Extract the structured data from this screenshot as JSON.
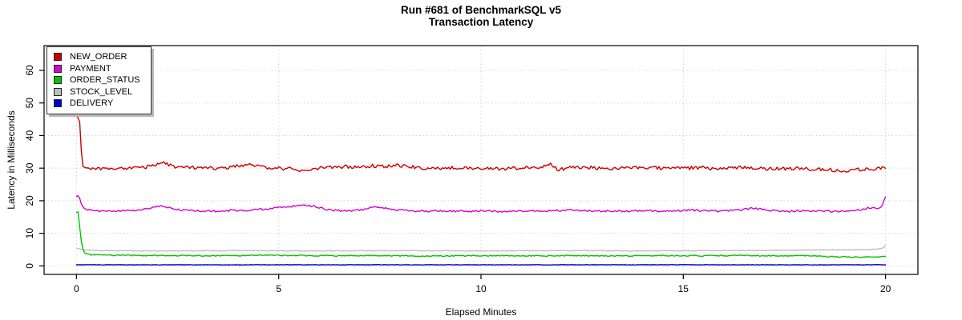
{
  "page": {
    "background": "#ffffff"
  },
  "chart_data": {
    "type": "line",
    "title": "Run #681 of BenchmarkSQL v5",
    "subtitle": "Transaction Latency",
    "xlabel": "Elapsed Minutes",
    "ylabel": "Latency in Milliseconds",
    "xlim": [
      0,
      20
    ],
    "ylim": [
      0,
      65
    ],
    "x_ticks": [
      0,
      5,
      10,
      15,
      20
    ],
    "y_ticks": [
      0,
      10,
      20,
      30,
      40,
      50,
      60
    ],
    "grid": {
      "show": true,
      "line_style": "dotted",
      "color": "#d4d4d4"
    },
    "legend": {
      "position": "top-left"
    },
    "series": [
      {
        "name": "STOCK_LEVEL",
        "color": "#bdbdbd",
        "noise_amplitude": 0.09,
        "anchors": [
          [
            0,
            5.4
          ],
          [
            0.2,
            4.9
          ],
          [
            0.6,
            4.7
          ],
          [
            2,
            4.6
          ],
          [
            4,
            4.7
          ],
          [
            6,
            4.6
          ],
          [
            8,
            4.7
          ],
          [
            10,
            4.6
          ],
          [
            12,
            4.7
          ],
          [
            14,
            4.6
          ],
          [
            16,
            4.7
          ],
          [
            17.5,
            4.8
          ],
          [
            18.5,
            4.9
          ],
          [
            19.3,
            5.0
          ],
          [
            19.8,
            5.1
          ],
          [
            19.95,
            5.6
          ],
          [
            20,
            6.3
          ]
        ]
      },
      {
        "name": "DELIVERY",
        "color": "#0000cc",
        "noise_amplitude": 0.06,
        "anchors": [
          [
            0,
            0.35
          ],
          [
            5,
            0.35
          ],
          [
            10,
            0.35
          ],
          [
            15,
            0.35
          ],
          [
            20,
            0.35
          ]
        ]
      },
      {
        "name": "ORDER_STATUS",
        "color": "#00c400",
        "noise_amplitude": 0.16,
        "anchors": [
          [
            0,
            16.4
          ],
          [
            0.05,
            16.6
          ],
          [
            0.1,
            9.0
          ],
          [
            0.18,
            4.0
          ],
          [
            0.35,
            3.4
          ],
          [
            0.8,
            3.3
          ],
          [
            1.5,
            3.2
          ],
          [
            2.5,
            3.2
          ],
          [
            3.5,
            3.1
          ],
          [
            4.5,
            3.3
          ],
          [
            5.5,
            3.2
          ],
          [
            6.5,
            3.1
          ],
          [
            7.5,
            3.2
          ],
          [
            8.5,
            3.0
          ],
          [
            9.5,
            3.1
          ],
          [
            10.5,
            3.2
          ],
          [
            11.5,
            3.1
          ],
          [
            12.5,
            3.2
          ],
          [
            13.5,
            3.1
          ],
          [
            14.5,
            3.2
          ],
          [
            15.5,
            3.1
          ],
          [
            16.5,
            3.2
          ],
          [
            17.5,
            3.1
          ],
          [
            18.0,
            3.2
          ],
          [
            18.4,
            2.9
          ],
          [
            18.8,
            2.8
          ],
          [
            19.3,
            2.7
          ],
          [
            19.7,
            2.8
          ],
          [
            20,
            2.9
          ]
        ]
      },
      {
        "name": "PAYMENT",
        "color": "#d400d4",
        "noise_amplitude": 0.28,
        "anchors": [
          [
            0,
            21.4
          ],
          [
            0.06,
            21.6
          ],
          [
            0.12,
            19.0
          ],
          [
            0.2,
            17.3
          ],
          [
            0.5,
            16.9
          ],
          [
            0.9,
            16.8
          ],
          [
            1.3,
            17.0
          ],
          [
            1.6,
            17.2
          ],
          [
            1.9,
            18.0
          ],
          [
            2.1,
            18.3
          ],
          [
            2.3,
            17.9
          ],
          [
            2.6,
            17.1
          ],
          [
            3.0,
            16.9
          ],
          [
            3.4,
            16.8
          ],
          [
            3.8,
            17.0
          ],
          [
            4.2,
            17.1
          ],
          [
            4.6,
            17.4
          ],
          [
            5.0,
            17.9
          ],
          [
            5.3,
            18.3
          ],
          [
            5.6,
            18.5
          ],
          [
            5.9,
            18.3
          ],
          [
            6.1,
            17.5
          ],
          [
            6.4,
            17.0
          ],
          [
            6.8,
            16.9
          ],
          [
            7.1,
            17.3
          ],
          [
            7.35,
            18.1
          ],
          [
            7.6,
            17.9
          ],
          [
            7.9,
            17.2
          ],
          [
            8.2,
            16.9
          ],
          [
            8.6,
            16.8
          ],
          [
            9.0,
            16.9
          ],
          [
            9.5,
            16.8
          ],
          [
            10.0,
            16.9
          ],
          [
            10.5,
            16.7
          ],
          [
            11.0,
            16.8
          ],
          [
            11.5,
            16.9
          ],
          [
            12.0,
            17.0
          ],
          [
            12.2,
            17.5
          ],
          [
            12.4,
            17.0
          ],
          [
            12.8,
            16.8
          ],
          [
            13.2,
            16.9
          ],
          [
            13.6,
            16.8
          ],
          [
            14.0,
            16.9
          ],
          [
            14.4,
            16.8
          ],
          [
            14.8,
            16.9
          ],
          [
            15.2,
            17.1
          ],
          [
            15.6,
            16.9
          ],
          [
            16.0,
            16.9
          ],
          [
            16.4,
            17.1
          ],
          [
            16.7,
            17.7
          ],
          [
            16.9,
            17.4
          ],
          [
            17.2,
            16.9
          ],
          [
            17.6,
            16.8
          ],
          [
            18.0,
            16.9
          ],
          [
            18.4,
            16.8
          ],
          [
            18.8,
            16.7
          ],
          [
            19.2,
            16.8
          ],
          [
            19.5,
            17.6
          ],
          [
            19.65,
            17.9
          ],
          [
            19.8,
            17.7
          ],
          [
            19.9,
            18.1
          ],
          [
            20,
            21.2
          ]
        ]
      },
      {
        "name": "NEW_ORDER",
        "color": "#cc0000",
        "noise_amplitude": 0.55,
        "anchors": [
          [
            0,
            46.5
          ],
          [
            0.08,
            44.0
          ],
          [
            0.14,
            31.0
          ],
          [
            0.2,
            29.8
          ],
          [
            0.7,
            29.8
          ],
          [
            1.2,
            30.0
          ],
          [
            1.7,
            30.3
          ],
          [
            2.0,
            31.2
          ],
          [
            2.15,
            31.7
          ],
          [
            2.35,
            30.6
          ],
          [
            2.6,
            30.1
          ],
          [
            3.0,
            30.2
          ],
          [
            3.4,
            29.9
          ],
          [
            3.8,
            30.3
          ],
          [
            4.1,
            30.8
          ],
          [
            4.35,
            31.0
          ],
          [
            4.6,
            30.2
          ],
          [
            5.0,
            30.0
          ],
          [
            5.4,
            29.7
          ],
          [
            5.55,
            28.9
          ],
          [
            5.8,
            29.9
          ],
          [
            6.2,
            30.2
          ],
          [
            6.6,
            30.4
          ],
          [
            7.0,
            30.1
          ],
          [
            7.3,
            30.7
          ],
          [
            7.6,
            30.4
          ],
          [
            7.9,
            30.8
          ],
          [
            8.2,
            30.5
          ],
          [
            8.6,
            30.0
          ],
          [
            9.0,
            29.9
          ],
          [
            9.4,
            30.2
          ],
          [
            9.8,
            30.0
          ],
          [
            10.2,
            29.9
          ],
          [
            10.6,
            29.8
          ],
          [
            11.0,
            30.1
          ],
          [
            11.4,
            30.2
          ],
          [
            11.75,
            31.3
          ],
          [
            11.9,
            29.6
          ],
          [
            12.2,
            30.1
          ],
          [
            12.6,
            30.3
          ],
          [
            13.0,
            29.9
          ],
          [
            13.4,
            30.1
          ],
          [
            13.8,
            30.0
          ],
          [
            14.2,
            30.2
          ],
          [
            14.6,
            29.8
          ],
          [
            15.0,
            30.0
          ],
          [
            15.4,
            30.2
          ],
          [
            15.8,
            29.8
          ],
          [
            16.2,
            30.1
          ],
          [
            16.6,
            30.3
          ],
          [
            17.0,
            29.9
          ],
          [
            17.4,
            29.8
          ],
          [
            17.8,
            30.0
          ],
          [
            18.2,
            29.7
          ],
          [
            18.6,
            29.5
          ],
          [
            19.0,
            29.3
          ],
          [
            19.4,
            29.6
          ],
          [
            19.7,
            29.8
          ],
          [
            20,
            30.0
          ]
        ]
      }
    ]
  }
}
